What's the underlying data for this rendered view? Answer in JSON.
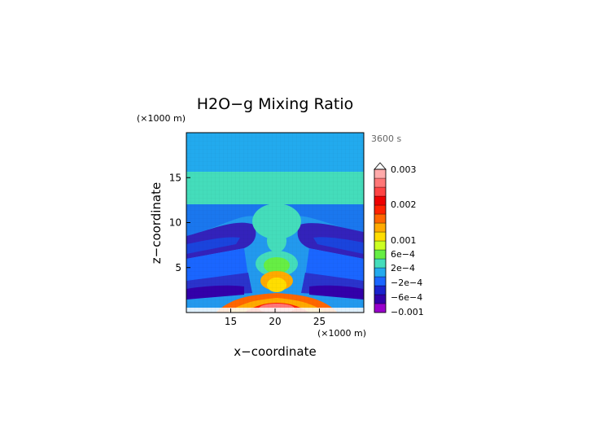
{
  "chart_data": {
    "type": "heatmap",
    "title": "H2O−g Mixing Ratio",
    "time_label": "3600 s",
    "xlabel": "x−coordinate",
    "ylabel": "z−coordinate",
    "x_unit": "(×1000 m)",
    "y_unit": "(×1000 m)",
    "xlim": [
      10,
      30
    ],
    "ylim": [
      0,
      20
    ],
    "x_ticks": [
      "15",
      "20",
      "25"
    ],
    "x_tick_values": [
      15,
      20,
      25
    ],
    "y_ticks": [
      "5",
      "10",
      "15"
    ],
    "y_tick_values": [
      5,
      10,
      15
    ],
    "colorbar": {
      "labels": [
        "0.003",
        "0.002",
        "0.001",
        "6e−4",
        "2e−4",
        "−2e−4",
        "−6e−4",
        "−0.001"
      ],
      "colors": [
        "#9900cc",
        "#3300aa",
        "#1a22cc",
        "#1a66ff",
        "#22aaee",
        "#44ddbb",
        "#66ee44",
        "#ccff22",
        "#ffdd00",
        "#ffaa00",
        "#ff6600",
        "#ff2200",
        "#ee0000",
        "#ff4444",
        "#ff7777",
        "#ffaaaa"
      ]
    },
    "grid": true
  }
}
